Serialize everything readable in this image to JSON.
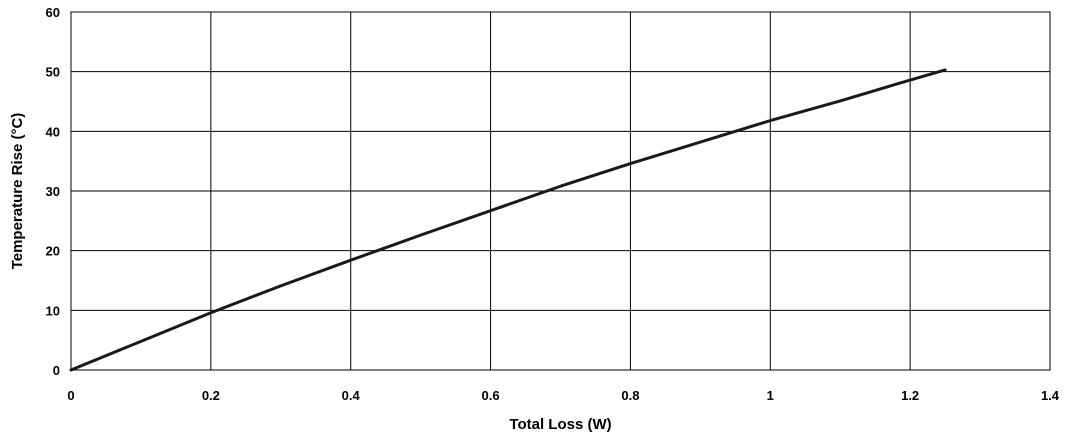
{
  "chart_data": {
    "type": "line",
    "title": "",
    "xlabel": "Total Loss (W)",
    "ylabel": "Temperature Rise (°C)",
    "xlim": [
      0,
      1.4
    ],
    "ylim": [
      0,
      60
    ],
    "xticks": [
      0,
      0.2,
      0.4,
      0.6,
      0.8,
      1,
      1.2,
      1.4
    ],
    "xtick_labels": [
      "0",
      "0.2",
      "0.4",
      "0.6",
      "0.8",
      "1",
      "1.2",
      "1.4"
    ],
    "yticks": [
      0,
      10,
      20,
      30,
      40,
      50,
      60
    ],
    "ytick_labels": [
      "0",
      "10",
      "20",
      "30",
      "40",
      "50",
      "60"
    ],
    "grid": true,
    "legend": "none",
    "series": [
      {
        "color": "#1a1a1a",
        "points": [
          {
            "x": 0,
            "y": 0
          },
          {
            "x": 0.1,
            "y": 4.8
          },
          {
            "x": 0.2,
            "y": 9.6
          },
          {
            "x": 0.3,
            "y": 14.1
          },
          {
            "x": 0.4,
            "y": 18.4
          },
          {
            "x": 0.5,
            "y": 22.6
          },
          {
            "x": 0.6,
            "y": 26.7
          },
          {
            "x": 0.7,
            "y": 30.8
          },
          {
            "x": 0.8,
            "y": 34.6
          },
          {
            "x": 0.9,
            "y": 38.2
          },
          {
            "x": 1.0,
            "y": 41.8
          },
          {
            "x": 1.1,
            "y": 45.1
          },
          {
            "x": 1.2,
            "y": 48.6
          },
          {
            "x": 1.25,
            "y": 50.3
          }
        ]
      }
    ]
  }
}
